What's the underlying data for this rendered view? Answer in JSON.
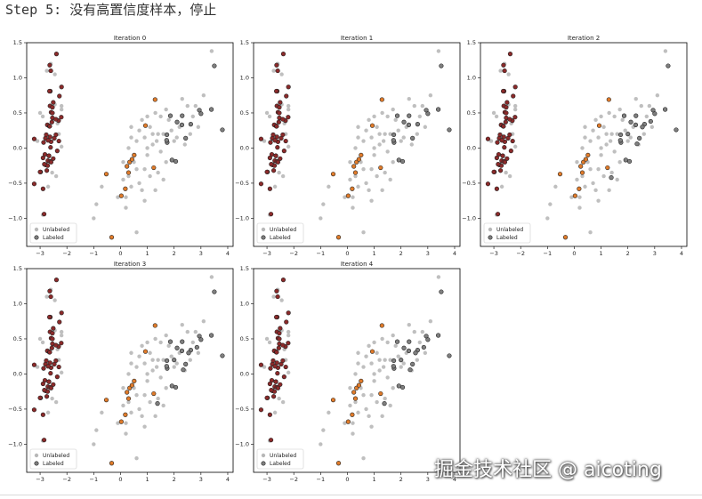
{
  "step_title": "Step 5: 没有高置信度样本，停止",
  "watermark": "掘金技术社区 @ aicoting",
  "colors": {
    "unlabeled": "#b8b8b8",
    "labeled_gray": "#7f7f7f",
    "labeled_red": "#8b2a2a",
    "labeled_orange": "#e07b2a",
    "edge": "#222222",
    "axes": "#000000"
  },
  "chart_data": [
    {
      "type": "scatter",
      "title": "Iteration 0",
      "xlim": [
        -3.5,
        4.2
      ],
      "ylim": [
        -1.4,
        1.5
      ],
      "xticks": [
        -3,
        -2,
        -1,
        0,
        1,
        2,
        3,
        4
      ],
      "yticks": [
        -1.0,
        -0.5,
        0.0,
        0.5,
        1.0,
        1.5
      ],
      "legend": {
        "placement": "lower-left",
        "entries": [
          "Unlabeled",
          "Labeled"
        ]
      }
    },
    {
      "type": "scatter",
      "title": "Iteration 1",
      "xlim": [
        -3.5,
        4.2
      ],
      "ylim": [
        -1.4,
        1.5
      ],
      "xticks": [
        -3,
        -2,
        -1,
        0,
        1,
        2,
        3,
        4
      ],
      "yticks": [
        -1.0,
        -0.5,
        0.0,
        0.5,
        1.0,
        1.5
      ],
      "legend": {
        "placement": "lower-left",
        "entries": [
          "Unlabeled",
          "Labeled"
        ]
      }
    },
    {
      "type": "scatter",
      "title": "Iteration 2",
      "xlim": [
        -3.5,
        4.2
      ],
      "ylim": [
        -1.4,
        1.5
      ],
      "xticks": [
        -3,
        -2,
        -1,
        0,
        1,
        2,
        3,
        4
      ],
      "yticks": [
        -1.0,
        -0.5,
        0.0,
        0.5,
        1.0,
        1.5
      ],
      "legend": {
        "placement": "lower-left",
        "entries": [
          "Unlabeled",
          "Labeled"
        ]
      }
    },
    {
      "type": "scatter",
      "title": "Iteration 3",
      "xlim": [
        -3.5,
        4.2
      ],
      "ylim": [
        -1.4,
        1.5
      ],
      "xticks": [
        -3,
        -2,
        -1,
        0,
        1,
        2,
        3,
        4
      ],
      "yticks": [
        -1.0,
        -0.5,
        0.0,
        0.5,
        1.0,
        1.5
      ],
      "legend": {
        "placement": "lower-left",
        "entries": [
          "Unlabeled",
          "Labeled"
        ]
      }
    },
    {
      "type": "scatter",
      "title": "Iteration 4",
      "xlim": [
        -3.5,
        4.2
      ],
      "ylim": [
        -1.4,
        1.5
      ],
      "xticks": [
        -3,
        -2,
        -1,
        0,
        1,
        2,
        3,
        4
      ],
      "yticks": [
        -1.0,
        -0.5,
        0.0,
        0.5,
        1.0,
        1.5
      ],
      "legend": {
        "placement": "lower-left",
        "entries": [
          "Unlabeled",
          "Labeled"
        ]
      }
    }
  ],
  "points": {
    "red_cluster": [
      [
        -2.68,
        0.32
      ],
      [
        -2.71,
        -0.18
      ],
      [
        -2.89,
        -0.14
      ],
      [
        -2.75,
        -0.32
      ],
      [
        -2.73,
        0.33
      ],
      [
        -2.28,
        0.74
      ],
      [
        -2.82,
        -0.09
      ],
      [
        -2.63,
        0.16
      ],
      [
        -2.89,
        -0.58
      ],
      [
        -2.67,
        -0.11
      ],
      [
        -2.51,
        0.65
      ],
      [
        -2.61,
        0.01
      ],
      [
        -2.79,
        -0.24
      ],
      [
        -3.22,
        -0.51
      ],
      [
        -2.64,
        1.18
      ],
      [
        -2.39,
        1.34
      ],
      [
        -2.62,
        0.81
      ],
      [
        -2.65,
        0.31
      ],
      [
        -2.2,
        0.87
      ],
      [
        -2.59,
        0.51
      ],
      [
        -2.31,
        0.39
      ],
      [
        -2.54,
        0.43
      ],
      [
        -3.22,
        0.13
      ],
      [
        -2.3,
        0.1
      ],
      [
        -2.36,
        -0.04
      ],
      [
        -2.51,
        -0.15
      ],
      [
        -2.47,
        0.14
      ],
      [
        -2.56,
        0.37
      ],
      [
        -2.64,
        0.31
      ],
      [
        -2.63,
        -0.19
      ],
      [
        -2.59,
        -0.2
      ],
      [
        -2.41,
        0.41
      ],
      [
        -2.65,
        0.81
      ],
      [
        -2.6,
        1.1
      ],
      [
        -2.67,
        -0.11
      ],
      [
        -2.87,
        0.08
      ],
      [
        -2.63,
        0.6
      ],
      [
        -2.8,
        0.14
      ],
      [
        -2.98,
        -0.34
      ],
      [
        -2.59,
        0.09
      ],
      [
        -2.77,
        0.19
      ],
      [
        -2.85,
        -0.94
      ],
      [
        -3.0,
        -0.34
      ],
      [
        -2.41,
        0.19
      ],
      [
        -2.21,
        0.44
      ],
      [
        -2.72,
        -0.25
      ],
      [
        -2.54,
        0.5
      ],
      [
        -2.84,
        -0.23
      ],
      [
        -2.54,
        0.58
      ],
      [
        -2.7,
        0.11
      ]
    ],
    "orange_points": [
      [
        1.29,
        0.69
      ],
      [
        0.93,
        0.32
      ],
      [
        -0.53,
        -0.37
      ],
      [
        0.3,
        -0.35
      ],
      [
        -0.33,
        -1.27
      ],
      [
        0.24,
        -0.26
      ],
      [
        0.51,
        -0.1
      ],
      [
        0.03,
        -0.68
      ],
      [
        0.18,
        -0.58
      ],
      [
        0.34,
        -0.2
      ],
      [
        0.43,
        -0.16
      ],
      [
        1.24,
        -0.28
      ]
    ],
    "gray_points": [
      [
        1.74,
        0.08
      ],
      [
        2.62,
        0.34
      ],
      [
        3.0,
        0.49
      ],
      [
        3.5,
        1.17
      ],
      [
        3.8,
        0.26
      ],
      [
        2.11,
        0.37
      ],
      [
        2.94,
        0.54
      ],
      [
        2.29,
        0.33
      ],
      [
        2.43,
        0.14
      ],
      [
        2.3,
        0.46
      ],
      [
        1.73,
        0.19
      ],
      [
        1.92,
        -0.17
      ],
      [
        2.06,
        -0.19
      ],
      [
        1.72,
        0.11
      ],
      [
        1.86,
        0.46
      ],
      [
        3.39,
        0.55
      ]
    ],
    "late_gray_points": [
      [
        1.38,
        -0.42
      ],
      [
        2.34,
        0.06
      ],
      [
        2.54,
        0.3
      ],
      [
        2.0,
        0.2
      ],
      [
        2.85,
        0.38
      ]
    ],
    "unlabeled_points": [
      [
        -3.0,
        0.5
      ],
      [
        -2.2,
        0.55
      ],
      [
        -2.45,
        1.05
      ],
      [
        -2.3,
        0.2
      ],
      [
        -2.55,
        -0.35
      ],
      [
        -2.9,
        0.45
      ],
      [
        -2.2,
        0.6
      ],
      [
        -2.35,
        0.35
      ],
      [
        -2.4,
        -0.4
      ],
      [
        -2.75,
        1.1
      ],
      [
        -3.1,
        0.1
      ],
      [
        -2.45,
        0.62
      ],
      [
        -2.2,
        0.02
      ],
      [
        -2.7,
        -0.55
      ],
      [
        -2.9,
        -0.95
      ],
      [
        -2.6,
        1.2
      ],
      [
        1.1,
        0.3
      ],
      [
        0.8,
        0.4
      ],
      [
        1.4,
        0.2
      ],
      [
        1.0,
        -0.1
      ],
      [
        0.6,
        0.1
      ],
      [
        0.9,
        -0.3
      ],
      [
        1.3,
        0.5
      ],
      [
        0.5,
        -0.2
      ],
      [
        0.2,
        -0.7
      ],
      [
        0.7,
        -0.5
      ],
      [
        1.6,
        0.2
      ],
      [
        1.2,
        0.05
      ],
      [
        0.4,
        0.3
      ],
      [
        1.5,
        -0.05
      ],
      [
        0.8,
        -0.6
      ],
      [
        0.1,
        -0.45
      ],
      [
        0.6,
        -0.3
      ],
      [
        1.8,
        0.4
      ],
      [
        1.3,
        -0.6
      ],
      [
        0.9,
        0.15
      ],
      [
        -0.1,
        -0.7
      ],
      [
        0.3,
        0.0
      ],
      [
        1.1,
        -0.4
      ],
      [
        1.5,
        0.45
      ],
      [
        2.2,
        0.3
      ],
      [
        1.9,
        0.25
      ],
      [
        2.4,
        0.05
      ],
      [
        2.7,
        0.45
      ],
      [
        2.5,
        0.6
      ],
      [
        1.7,
        -0.2
      ],
      [
        2.0,
        0.1
      ],
      [
        1.0,
        0.45
      ],
      [
        0.7,
        0.25
      ],
      [
        1.4,
        -0.35
      ],
      [
        0.4,
        -0.55
      ],
      [
        2.6,
        0.2
      ],
      [
        3.1,
        0.75
      ],
      [
        3.4,
        1.38
      ],
      [
        2.8,
        0.6
      ],
      [
        1.2,
        0.2
      ],
      [
        -0.9,
        -0.8
      ],
      [
        -1.0,
        -1.0
      ],
      [
        0.6,
        -1.2
      ],
      [
        0.2,
        -0.85
      ],
      [
        1.6,
        -0.45
      ],
      [
        0.9,
        -0.75
      ],
      [
        2.3,
        0.7
      ],
      [
        1.7,
        0.55
      ],
      [
        0.4,
        0.15
      ],
      [
        1.0,
        0.0
      ],
      [
        -0.7,
        -0.55
      ],
      [
        0.1,
        -0.2
      ],
      [
        2.1,
        0.15
      ],
      [
        2.9,
        0.3
      ],
      [
        0.3,
        -0.4
      ],
      [
        1.35,
        0.1
      ]
    ]
  }
}
